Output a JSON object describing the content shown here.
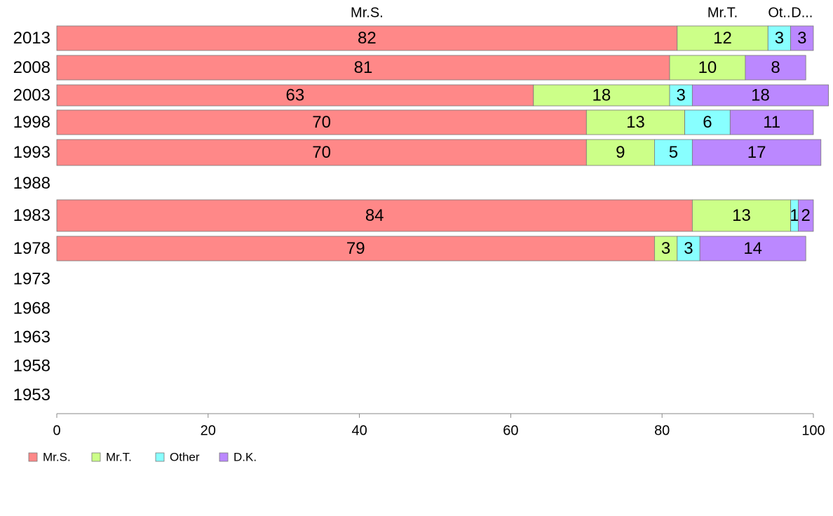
{
  "chart_data": {
    "type": "bar",
    "orientation": "horizontal",
    "stacked": true,
    "categories": [
      "2013",
      "2008",
      "2003",
      "1998",
      "1993",
      "1988",
      "1983",
      "1978",
      "1973",
      "1968",
      "1963",
      "1958",
      "1953"
    ],
    "series": [
      {
        "name": "Mr.S.",
        "color": "#FF8888",
        "values": [
          82,
          81,
          63,
          70,
          70,
          null,
          84,
          79,
          null,
          null,
          null,
          null,
          null
        ]
      },
      {
        "name": "Mr.T.",
        "color": "#CCFF88",
        "values": [
          12,
          10,
          18,
          13,
          9,
          null,
          13,
          3,
          null,
          null,
          null,
          null,
          null
        ]
      },
      {
        "name": "Other",
        "color": "#88FFFF",
        "values": [
          3,
          0,
          3,
          6,
          5,
          null,
          1,
          3,
          null,
          null,
          null,
          null,
          null
        ]
      },
      {
        "name": "D.K.",
        "color": "#BB88FF",
        "values": [
          3,
          8,
          18,
          11,
          17,
          null,
          2,
          14,
          null,
          null,
          null,
          null,
          null
        ]
      }
    ],
    "top_labels": [
      "Mr.S.",
      "Mr.T.",
      "Ot..",
      "D..."
    ],
    "xlim": [
      0,
      100
    ],
    "xticks": [
      0,
      20,
      40,
      60,
      80,
      100
    ],
    "title": "",
    "xlabel": "",
    "ylabel": "",
    "grid": false,
    "legend_position": "bottom-left"
  }
}
